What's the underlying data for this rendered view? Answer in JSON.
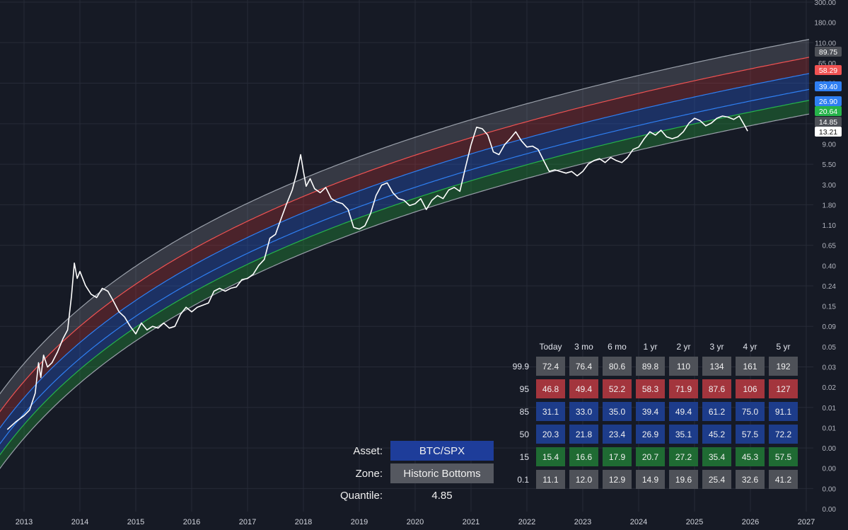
{
  "colors": {
    "background": "#161a25",
    "grid": "#262b37",
    "band_outer": "#9aa0aa",
    "band_red": "#f05252",
    "band_blue": "#2f7ff2",
    "band_green": "#26b34a",
    "price_line": "#ffffff",
    "cell_gray": "#4e5158",
    "cell_red": "#a3353d",
    "cell_blue": "#1d3c8a",
    "cell_green": "#1f6b33",
    "asset_bg": "#1e3d9a",
    "zone_bg": "#555860"
  },
  "chart_data": {
    "type": "line",
    "x_axis": {
      "labels": [
        "2013",
        "2014",
        "2015",
        "2016",
        "2017",
        "2018",
        "2019",
        "2020",
        "2021",
        "2022",
        "2023",
        "2024",
        "2025",
        "2026",
        "2027"
      ]
    },
    "y_axis": {
      "scale": "log",
      "tick_labels": [
        "300.00",
        "180.00",
        "110.00",
        "65.00",
        "40.00",
        "25.00",
        "15.00",
        "9.00",
        "5.50",
        "3.00",
        "1.80",
        "1.10",
        "0.65",
        "0.40",
        "0.24",
        "0.15",
        "0.09",
        "0.05",
        "0.03",
        "0.02",
        "0.01",
        "0.01",
        "0.00",
        "0.00",
        "0.00",
        "0.00"
      ]
    },
    "band_quantiles": [
      99.9,
      95,
      85,
      50,
      15,
      0.1
    ],
    "band_current_values": [
      89.75,
      58.29,
      39.4,
      26.9,
      20.64,
      14.85
    ],
    "last_price_label": "13.21",
    "axis_badges": [
      {
        "label": "89.75",
        "color": "#4e5158"
      },
      {
        "label": "58.29",
        "color": "#f05252"
      },
      {
        "label": "39.40",
        "color": "#2f7ff2"
      },
      {
        "label": "26.90",
        "color": "#2f7ff2"
      },
      {
        "label": "20.64",
        "color": "#26b34a"
      },
      {
        "label": "14.85",
        "color": "#4e5158"
      },
      {
        "label": "13.21",
        "color": "#ffffff"
      }
    ],
    "price_series": [
      [
        2012.7,
        0.01
      ],
      [
        2012.85,
        0.012
      ],
      [
        2013.0,
        0.014
      ],
      [
        2013.1,
        0.016
      ],
      [
        2013.2,
        0.024
      ],
      [
        2013.26,
        0.05
      ],
      [
        2013.3,
        0.035
      ],
      [
        2013.35,
        0.06
      ],
      [
        2013.42,
        0.045
      ],
      [
        2013.5,
        0.05
      ],
      [
        2013.6,
        0.065
      ],
      [
        2013.7,
        0.09
      ],
      [
        2013.78,
        0.11
      ],
      [
        2013.85,
        0.25
      ],
      [
        2013.9,
        0.55
      ],
      [
        2013.95,
        0.38
      ],
      [
        2014.0,
        0.45
      ],
      [
        2014.1,
        0.32
      ],
      [
        2014.2,
        0.26
      ],
      [
        2014.3,
        0.24
      ],
      [
        2014.4,
        0.3
      ],
      [
        2014.5,
        0.28
      ],
      [
        2014.6,
        0.22
      ],
      [
        2014.7,
        0.17
      ],
      [
        2014.8,
        0.15
      ],
      [
        2014.9,
        0.12
      ],
      [
        2015.0,
        0.1
      ],
      [
        2015.1,
        0.13
      ],
      [
        2015.2,
        0.11
      ],
      [
        2015.3,
        0.12
      ],
      [
        2015.4,
        0.115
      ],
      [
        2015.5,
        0.13
      ],
      [
        2015.6,
        0.115
      ],
      [
        2015.7,
        0.12
      ],
      [
        2015.8,
        0.16
      ],
      [
        2015.9,
        0.19
      ],
      [
        2016.0,
        0.17
      ],
      [
        2016.1,
        0.19
      ],
      [
        2016.2,
        0.2
      ],
      [
        2016.3,
        0.21
      ],
      [
        2016.4,
        0.28
      ],
      [
        2016.5,
        0.3
      ],
      [
        2016.6,
        0.28
      ],
      [
        2016.7,
        0.3
      ],
      [
        2016.8,
        0.31
      ],
      [
        2016.9,
        0.37
      ],
      [
        2017.0,
        0.38
      ],
      [
        2017.1,
        0.42
      ],
      [
        2017.2,
        0.52
      ],
      [
        2017.3,
        0.6
      ],
      [
        2017.4,
        1.0
      ],
      [
        2017.5,
        1.1
      ],
      [
        2017.6,
        1.6
      ],
      [
        2017.7,
        2.3
      ],
      [
        2017.8,
        3.2
      ],
      [
        2017.88,
        4.8
      ],
      [
        2017.95,
        7.5
      ],
      [
        2018.0,
        5.0
      ],
      [
        2018.05,
        3.5
      ],
      [
        2018.12,
        4.2
      ],
      [
        2018.2,
        3.3
      ],
      [
        2018.3,
        3.0
      ],
      [
        2018.4,
        3.4
      ],
      [
        2018.5,
        2.6
      ],
      [
        2018.6,
        2.4
      ],
      [
        2018.7,
        2.3
      ],
      [
        2018.8,
        2.0
      ],
      [
        2018.9,
        1.3
      ],
      [
        2019.0,
        1.25
      ],
      [
        2019.1,
        1.35
      ],
      [
        2019.2,
        1.8
      ],
      [
        2019.3,
        2.8
      ],
      [
        2019.4,
        3.6
      ],
      [
        2019.5,
        3.8
      ],
      [
        2019.6,
        3.0
      ],
      [
        2019.7,
        2.6
      ],
      [
        2019.8,
        2.5
      ],
      [
        2019.9,
        2.2
      ],
      [
        2020.0,
        2.3
      ],
      [
        2020.1,
        2.6
      ],
      [
        2020.2,
        2.0
      ],
      [
        2020.3,
        2.5
      ],
      [
        2020.4,
        2.8
      ],
      [
        2020.5,
        2.6
      ],
      [
        2020.6,
        3.2
      ],
      [
        2020.7,
        3.4
      ],
      [
        2020.8,
        3.1
      ],
      [
        2020.9,
        5.5
      ],
      [
        2021.0,
        9.5
      ],
      [
        2021.1,
        14.5
      ],
      [
        2021.2,
        14.0
      ],
      [
        2021.3,
        12.0
      ],
      [
        2021.4,
        8.0
      ],
      [
        2021.5,
        7.5
      ],
      [
        2021.6,
        9.5
      ],
      [
        2021.7,
        11.0
      ],
      [
        2021.8,
        13.0
      ],
      [
        2021.9,
        10.5
      ],
      [
        2022.0,
        9.0
      ],
      [
        2022.1,
        9.2
      ],
      [
        2022.2,
        8.5
      ],
      [
        2022.3,
        6.5
      ],
      [
        2022.4,
        5.0
      ],
      [
        2022.5,
        5.2
      ],
      [
        2022.6,
        5.0
      ],
      [
        2022.7,
        4.8
      ],
      [
        2022.8,
        5.0
      ],
      [
        2022.9,
        4.5
      ],
      [
        2023.0,
        5.0
      ],
      [
        2023.1,
        6.0
      ],
      [
        2023.2,
        6.5
      ],
      [
        2023.3,
        6.8
      ],
      [
        2023.4,
        6.2
      ],
      [
        2023.5,
        7.0
      ],
      [
        2023.6,
        6.5
      ],
      [
        2023.7,
        6.2
      ],
      [
        2023.8,
        7.0
      ],
      [
        2023.9,
        8.5
      ],
      [
        2024.0,
        9.0
      ],
      [
        2024.1,
        11.0
      ],
      [
        2024.2,
        13.0
      ],
      [
        2024.3,
        12.0
      ],
      [
        2024.4,
        13.5
      ],
      [
        2024.5,
        11.5
      ],
      [
        2024.6,
        11.0
      ],
      [
        2024.7,
        11.5
      ],
      [
        2024.8,
        13.0
      ],
      [
        2024.9,
        16.0
      ],
      [
        2025.0,
        18.0
      ],
      [
        2025.1,
        17.0
      ],
      [
        2025.2,
        15.0
      ],
      [
        2025.3,
        16.0
      ],
      [
        2025.4,
        18.0
      ],
      [
        2025.5,
        19.0
      ],
      [
        2025.6,
        18.5
      ],
      [
        2025.7,
        17.5
      ],
      [
        2025.8,
        19.0
      ],
      [
        2025.9,
        15.0
      ],
      [
        2025.95,
        13.21
      ]
    ]
  },
  "quantile_table": {
    "headers": [
      "Today",
      "3 mo",
      "6 mo",
      "1 yr",
      "2 yr",
      "3 yr",
      "4 yr",
      "5 yr"
    ],
    "rows": [
      {
        "label": "99.9",
        "color": "#4e5158",
        "values": [
          "72.4",
          "76.4",
          "80.6",
          "89.8",
          "110",
          "134",
          "161",
          "192"
        ]
      },
      {
        "label": "95",
        "color": "#a3353d",
        "values": [
          "46.8",
          "49.4",
          "52.2",
          "58.3",
          "71.9",
          "87.6",
          "106",
          "127"
        ]
      },
      {
        "label": "85",
        "color": "#1d3c8a",
        "values": [
          "31.1",
          "33.0",
          "35.0",
          "39.4",
          "49.4",
          "61.2",
          "75.0",
          "91.1"
        ]
      },
      {
        "label": "50",
        "color": "#1d3c8a",
        "values": [
          "20.3",
          "21.8",
          "23.4",
          "26.9",
          "35.1",
          "45.2",
          "57.5",
          "72.2"
        ]
      },
      {
        "label": "15",
        "color": "#1f6b33",
        "values": [
          "15.4",
          "16.6",
          "17.9",
          "20.7",
          "27.2",
          "35.4",
          "45.3",
          "57.5"
        ]
      },
      {
        "label": "0.1",
        "color": "#4e5158",
        "values": [
          "11.1",
          "12.0",
          "12.9",
          "14.9",
          "19.6",
          "25.4",
          "32.6",
          "41.2"
        ]
      }
    ]
  },
  "info": {
    "asset_label": "Asset:",
    "asset_value": "BTC/SPX",
    "zone_label": "Zone:",
    "zone_value": "Historic Bottoms",
    "quantile_label": "Quantile:",
    "quantile_value": "4.85"
  }
}
